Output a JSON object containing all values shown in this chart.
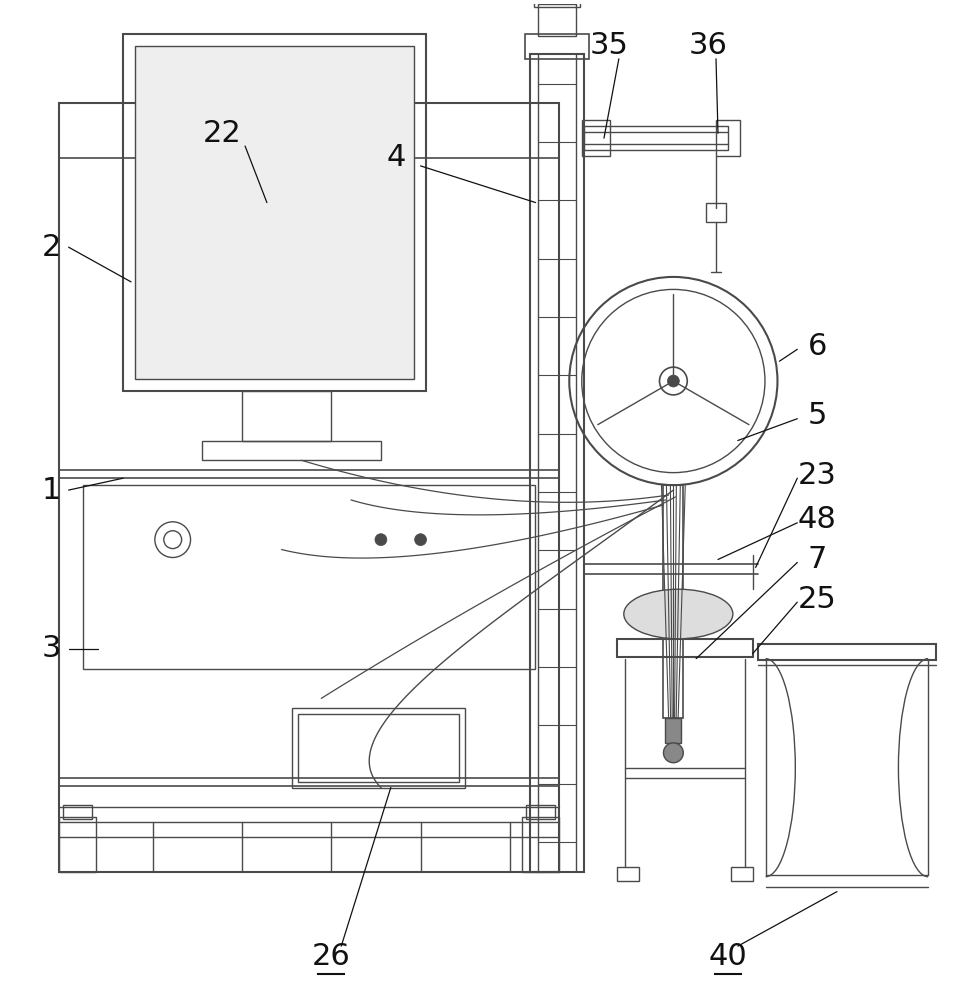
{
  "bg_color": "#ffffff",
  "lc": "#4a4a4a",
  "label_color": "#111111",
  "fig_width": 9.71,
  "fig_height": 10.0,
  "lw": 1.0,
  "lw_thick": 1.5,
  "lw_med": 1.2
}
